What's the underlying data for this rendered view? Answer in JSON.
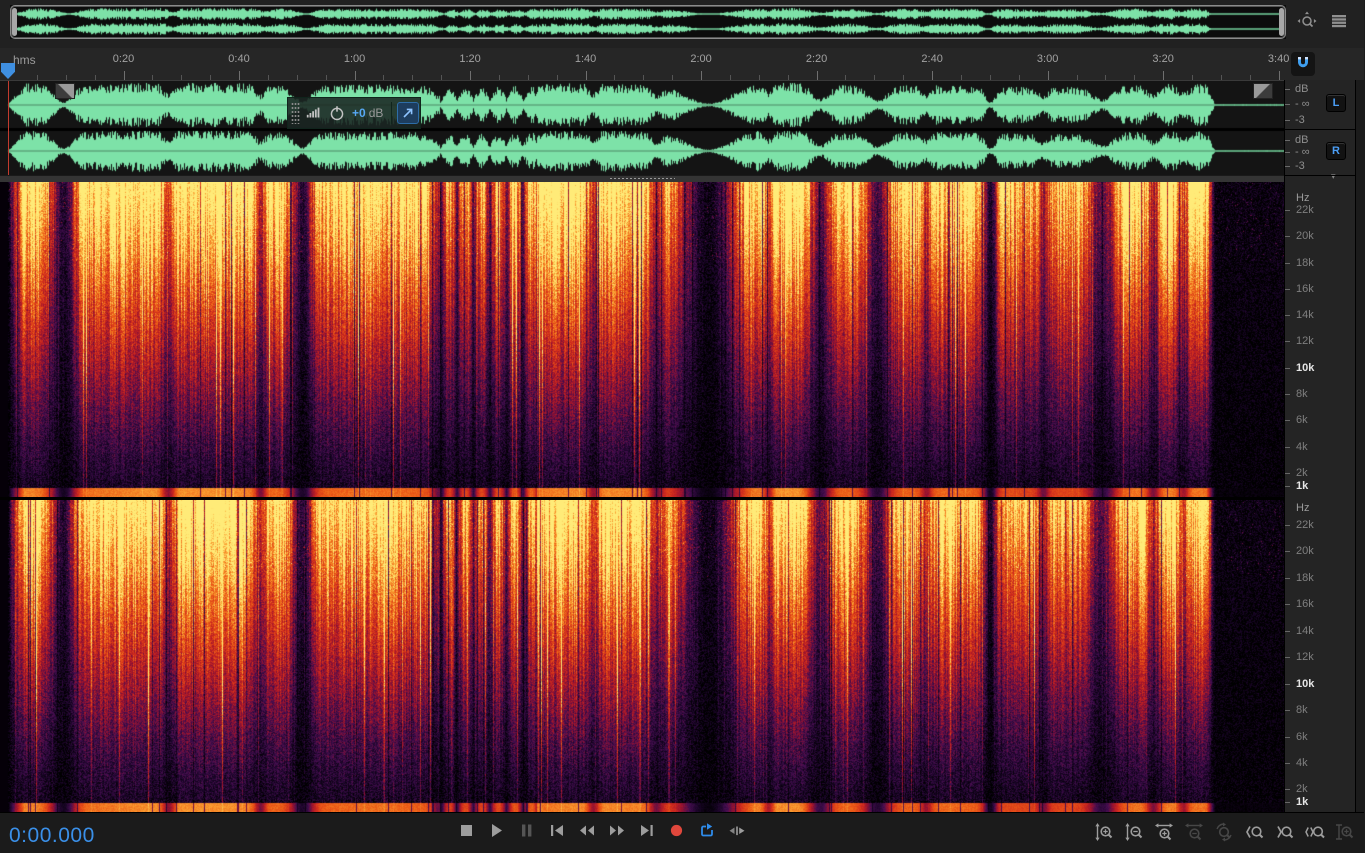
{
  "topbar": {
    "icons": [
      {
        "name": "pan-zoom-icon"
      },
      {
        "name": "panel-menu-icon"
      }
    ]
  },
  "ruler": {
    "unit_label": "hms",
    "interval_seconds": 20,
    "labels": [
      "0:20",
      "0:40",
      "1:00",
      "1:20",
      "1:40",
      "2:00",
      "2:20",
      "2:40",
      "3:00",
      "3:20",
      "3:40"
    ],
    "snap": {
      "icon": "magnet-icon",
      "active": true
    }
  },
  "hud": {
    "icons": [
      "drag-grip",
      "volume-bars-icon",
      "gain-knob-icon"
    ],
    "gain_value": "+0",
    "gain_unit": "dB",
    "pin_icon": "pin-arrow-icon"
  },
  "channels": {
    "left": {
      "label": "L",
      "db_scale": [
        "dB",
        "- ∞",
        "-3"
      ]
    },
    "right": {
      "label": "R",
      "db_scale": [
        "dB",
        "- ∞",
        "-3"
      ]
    }
  },
  "spectrogram_scale": {
    "unit": "Hz",
    "labels": [
      "22k",
      "20k",
      "18k",
      "16k",
      "14k",
      "12k",
      "10k",
      "8k",
      "6k",
      "4k",
      "2k",
      "1k"
    ],
    "highlighted": [
      "10k",
      "1k"
    ]
  },
  "transport": {
    "buttons": [
      {
        "name": "stop-button",
        "icon": "stop-icon",
        "state": "normal"
      },
      {
        "name": "play-button",
        "icon": "play-icon",
        "state": "normal"
      },
      {
        "name": "pause-button",
        "icon": "pause-icon",
        "state": "disabled"
      },
      {
        "name": "skip-to-start-button",
        "icon": "skip-start-icon",
        "state": "normal"
      },
      {
        "name": "rewind-button",
        "icon": "rewind-icon",
        "state": "normal"
      },
      {
        "name": "fast-forward-button",
        "icon": "fast-forward-icon",
        "state": "normal"
      },
      {
        "name": "skip-to-end-button",
        "icon": "skip-end-icon",
        "state": "normal"
      },
      {
        "name": "record-button",
        "icon": "record-icon",
        "state": "record"
      },
      {
        "name": "loop-playback-button",
        "icon": "loop-icon",
        "state": "active"
      },
      {
        "name": "skip-selection-button",
        "icon": "skip-selection-icon",
        "state": "normal"
      }
    ]
  },
  "status": {
    "time_display": "0:00.000"
  },
  "zoom_toolbar": {
    "buttons": [
      {
        "name": "zoom-in-amplitude-button",
        "icon": "zoom-in-amp-icon",
        "disabled": false
      },
      {
        "name": "zoom-out-amplitude-button",
        "icon": "zoom-out-amp-icon",
        "disabled": false
      },
      {
        "name": "zoom-in-time-button",
        "icon": "zoom-in-time-icon",
        "disabled": false
      },
      {
        "name": "zoom-out-time-button",
        "icon": "zoom-out-time-icon",
        "disabled": true
      },
      {
        "name": "reset-zoom-button",
        "icon": "reset-zoom-icon",
        "disabled": true,
        "group_break": true
      },
      {
        "name": "zoom-in-at-in-point-button",
        "icon": "zoom-in-point-icon",
        "disabled": false
      },
      {
        "name": "zoom-in-at-out-point-button",
        "icon": "zoom-out-point-icon",
        "disabled": false
      },
      {
        "name": "zoom-to-selection-button",
        "icon": "zoom-selection-icon",
        "disabled": false
      },
      {
        "name": "zoom-full-button",
        "icon": "zoom-full-icon",
        "disabled": true
      }
    ]
  },
  "colors": {
    "waveform_green": "#7de2a8",
    "accent_blue": "#3a8fe8",
    "record_red": "#e0473c",
    "loop_blue": "#2e8ceb",
    "spectrogram_hot": "#ffe66e"
  }
}
